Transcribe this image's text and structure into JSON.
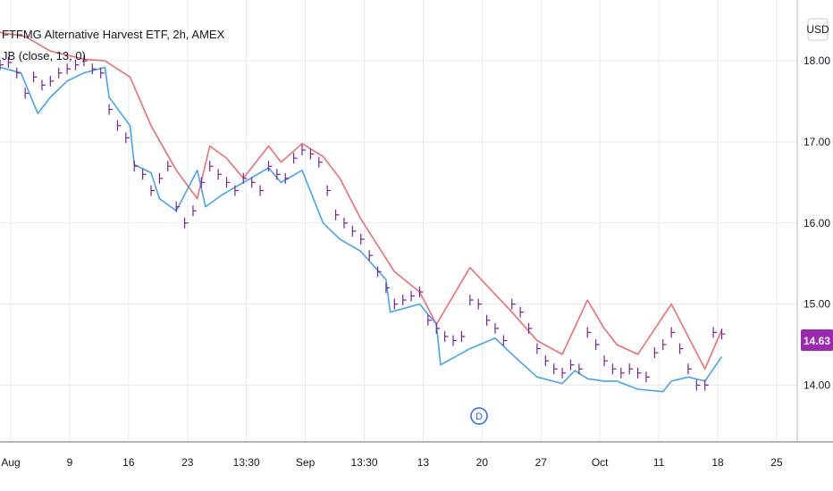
{
  "header": {
    "title": "FTFMG Alternative Harvest ETF, 2h, AMEX",
    "indicator": "JB (close, 13, 0)"
  },
  "currency_label": "USD",
  "last_price_label": "14.63",
  "event_marker": "D",
  "colors": {
    "upper_band": "#f26d6d",
    "lower_band": "#42a5f5",
    "price": "#7b1fa2",
    "grid": "#e3eaf0",
    "last_price_bg": "#9c27b0"
  },
  "chart_data": {
    "type": "line",
    "title": "FTFMG Alternative Harvest ETF, 2h, AMEX",
    "xlabel": "",
    "ylabel": "",
    "x_ticks": [
      "Aug",
      "9",
      "16",
      "23",
      "13:30",
      "Sep",
      "13:30",
      "13",
      "20",
      "27",
      "Oct",
      "11",
      "18",
      "25"
    ],
    "y_ticks": [
      "18.00",
      "17.00",
      "16.00",
      "15.00",
      "14.00"
    ],
    "ylim": [
      13.3,
      18.75
    ],
    "grid": true,
    "series": [
      {
        "name": "JB upper",
        "x": [
          0,
          3,
          6,
          10,
          12.5,
          15.5,
          18,
          21,
          23.5,
          25,
          27,
          29,
          32,
          33.5,
          36,
          38.5,
          40.5,
          43,
          47,
          50,
          52,
          56,
          61,
          64,
          67,
          70,
          72,
          73.5,
          76,
          80,
          82,
          84,
          86
        ],
        "y": [
          18.35,
          18.3,
          18.12,
          18.02,
          18.0,
          17.8,
          17.2,
          16.65,
          16.3,
          16.95,
          16.8,
          16.55,
          16.95,
          16.75,
          16.98,
          16.82,
          16.55,
          16.05,
          15.4,
          15.15,
          14.75,
          15.45,
          14.9,
          14.55,
          14.38,
          15.05,
          14.7,
          14.5,
          14.38,
          15.0,
          14.6,
          14.2,
          14.68
        ],
        "color": "#f26d6d"
      },
      {
        "name": "JB lower",
        "x": [
          0,
          2.5,
          4.5,
          6,
          8,
          10,
          12.5,
          13,
          15.5,
          16,
          18,
          19,
          21,
          23.5,
          24.5,
          26.5,
          29,
          32,
          33.5,
          36,
          38.5,
          40.5,
          43,
          46,
          46.5,
          50,
          52,
          52.5,
          56,
          59,
          61,
          64,
          67,
          68.5,
          70,
          72,
          73.5,
          76,
          79,
          80,
          82,
          84,
          86
        ],
        "y": [
          17.92,
          17.85,
          17.35,
          17.55,
          17.75,
          17.85,
          17.92,
          17.55,
          17.2,
          16.72,
          16.62,
          16.3,
          16.15,
          16.65,
          16.2,
          16.35,
          16.5,
          16.68,
          16.5,
          16.65,
          16.0,
          15.8,
          15.65,
          15.3,
          14.9,
          15.0,
          14.75,
          14.25,
          14.45,
          14.58,
          14.38,
          14.1,
          14.02,
          14.18,
          14.08,
          14.05,
          14.05,
          13.95,
          13.92,
          14.05,
          14.1,
          14.05,
          14.35
        ],
        "color": "#42a5f5"
      },
      {
        "name": "close",
        "x": [
          0,
          1,
          2,
          3,
          4,
          5,
          6,
          7,
          8,
          9,
          10,
          11,
          12,
          13,
          14,
          15,
          16,
          17,
          18,
          19,
          20,
          21,
          22,
          23,
          24,
          25,
          26,
          27,
          28,
          29,
          30,
          31,
          32,
          33,
          34,
          35,
          36,
          37,
          38,
          39,
          40,
          41,
          42,
          43,
          44,
          45,
          46,
          47,
          48,
          49,
          50,
          51,
          52,
          53,
          54,
          55,
          56,
          57,
          58,
          59,
          60,
          61,
          62,
          63,
          64,
          65,
          66,
          67,
          68,
          69,
          70,
          71,
          72,
          73,
          74,
          75,
          76,
          77,
          78,
          79,
          80,
          81,
          82,
          83,
          84,
          85,
          86
        ],
        "y": [
          17.95,
          17.98,
          17.85,
          17.6,
          17.8,
          17.7,
          17.75,
          17.85,
          17.9,
          17.95,
          18.0,
          17.9,
          17.85,
          17.4,
          17.2,
          17.05,
          16.7,
          16.6,
          16.4,
          16.55,
          16.7,
          16.2,
          16.0,
          16.15,
          16.5,
          16.7,
          16.6,
          16.5,
          16.4,
          16.55,
          16.5,
          16.4,
          16.7,
          16.6,
          16.55,
          16.8,
          16.9,
          16.85,
          16.75,
          16.4,
          16.1,
          16.0,
          15.9,
          15.8,
          15.6,
          15.4,
          15.2,
          15.0,
          15.05,
          15.1,
          15.15,
          14.8,
          14.7,
          14.6,
          14.55,
          14.6,
          15.05,
          15.0,
          14.8,
          14.7,
          14.55,
          15.0,
          14.9,
          14.7,
          14.45,
          14.3,
          14.2,
          14.15,
          14.25,
          14.2,
          14.65,
          14.5,
          14.3,
          14.2,
          14.15,
          14.2,
          14.15,
          14.1,
          14.4,
          14.5,
          14.65,
          14.45,
          14.2,
          14.0,
          14.0,
          14.65,
          14.63
        ],
        "color": "#7b1fa2"
      }
    ]
  }
}
